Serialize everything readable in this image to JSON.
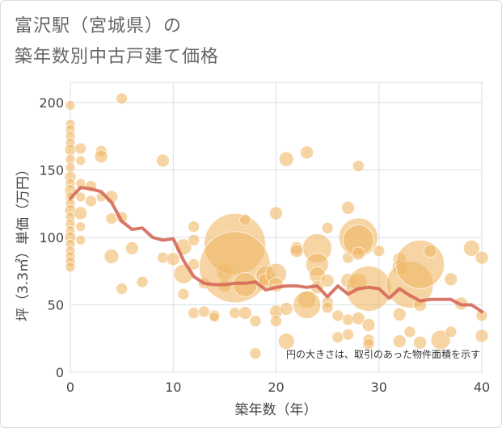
{
  "title": {
    "line1": "富沢駅（宮城県）の",
    "line2": "築年数別中古戸建て価格"
  },
  "chart_data": {
    "type": "scatter",
    "xlabel": "築年数（年）",
    "ylabel": "坪（3.3㎡）単価（万円）",
    "xlim": [
      0,
      40
    ],
    "ylim": [
      0,
      215
    ],
    "xticks": [
      0,
      10,
      20,
      30,
      40
    ],
    "yticks": [
      0,
      50,
      100,
      150,
      200
    ],
    "grid": true,
    "note": "円の大きさは、取引のあった物件面積を示す",
    "colors": {
      "bubble": "#f0b866",
      "line": "#d5695a",
      "grid": "#d8dde6"
    },
    "bubbles": [
      [
        0,
        198,
        6
      ],
      [
        0,
        184,
        6
      ],
      [
        0,
        180,
        6
      ],
      [
        0,
        175,
        6
      ],
      [
        0,
        170,
        6
      ],
      [
        0,
        165,
        7
      ],
      [
        0,
        158,
        6
      ],
      [
        0,
        152,
        6
      ],
      [
        0,
        145,
        7
      ],
      [
        0,
        140,
        6
      ],
      [
        0,
        135,
        7
      ],
      [
        0,
        130,
        6
      ],
      [
        0,
        125,
        6
      ],
      [
        0,
        120,
        7
      ],
      [
        0,
        115,
        6
      ],
      [
        0,
        110,
        6
      ],
      [
        0,
        105,
        6
      ],
      [
        0,
        100,
        7
      ],
      [
        0,
        95,
        6
      ],
      [
        0,
        90,
        6
      ],
      [
        0,
        86,
        6
      ],
      [
        0,
        82,
        6
      ],
      [
        0,
        78,
        6
      ],
      [
        1,
        166,
        7
      ],
      [
        1,
        157,
        6
      ],
      [
        1,
        140,
        6
      ],
      [
        1,
        130,
        6
      ],
      [
        1,
        118,
        8
      ],
      [
        1,
        108,
        6
      ],
      [
        1,
        98,
        6
      ],
      [
        2,
        138,
        7
      ],
      [
        2,
        127,
        7
      ],
      [
        3,
        164,
        7
      ],
      [
        3,
        160,
        8
      ],
      [
        3,
        130,
        6
      ],
      [
        4,
        130,
        8
      ],
      [
        4,
        114,
        7
      ],
      [
        4,
        86,
        9
      ],
      [
        5,
        203,
        7
      ],
      [
        5,
        115,
        7
      ],
      [
        5,
        62,
        7
      ],
      [
        6,
        92,
        8
      ],
      [
        7,
        67,
        7
      ],
      [
        9,
        157,
        8
      ],
      [
        9,
        85,
        7
      ],
      [
        10,
        84,
        8
      ],
      [
        11,
        93,
        10
      ],
      [
        11,
        73,
        12
      ],
      [
        11,
        58,
        7
      ],
      [
        12,
        108,
        7
      ],
      [
        12,
        98,
        7
      ],
      [
        12,
        80,
        7
      ],
      [
        12,
        44,
        7
      ],
      [
        13,
        66,
        7
      ],
      [
        13,
        45,
        7
      ],
      [
        14,
        42,
        7
      ],
      [
        14,
        41,
        6
      ],
      [
        15,
        74,
        10
      ],
      [
        15,
        64,
        8
      ],
      [
        16,
        95,
        38
      ],
      [
        16,
        78,
        44
      ],
      [
        16,
        44,
        7
      ],
      [
        17,
        113,
        7
      ],
      [
        17,
        65,
        15
      ],
      [
        17,
        44,
        8
      ],
      [
        18,
        38,
        7
      ],
      [
        18,
        14,
        7
      ],
      [
        19,
        72,
        12
      ],
      [
        19,
        68,
        9
      ],
      [
        20,
        118,
        8
      ],
      [
        20,
        73,
        13
      ],
      [
        20,
        65,
        9
      ],
      [
        20,
        45,
        8
      ],
      [
        20,
        38,
        7
      ],
      [
        21,
        158,
        9
      ],
      [
        21,
        47,
        8
      ],
      [
        21,
        23,
        10
      ],
      [
        22,
        92,
        8
      ],
      [
        22,
        90,
        8
      ],
      [
        23,
        163,
        8
      ],
      [
        23,
        54,
        11
      ],
      [
        23,
        50,
        17
      ],
      [
        24,
        92,
        18
      ],
      [
        24,
        80,
        14
      ],
      [
        24,
        72,
        10
      ],
      [
        24,
        63,
        8
      ],
      [
        25,
        107,
        7
      ],
      [
        25,
        68,
        8
      ],
      [
        25,
        52,
        7
      ],
      [
        25,
        48,
        7
      ],
      [
        26,
        42,
        7
      ],
      [
        26,
        26,
        7
      ],
      [
        27,
        122,
        8
      ],
      [
        27,
        85,
        7
      ],
      [
        27,
        68,
        9
      ],
      [
        27,
        39,
        7
      ],
      [
        27,
        28,
        7
      ],
      [
        28,
        153,
        7
      ],
      [
        28,
        100,
        24
      ],
      [
        28,
        98,
        19
      ],
      [
        28,
        88,
        8
      ],
      [
        28,
        67,
        11
      ],
      [
        28,
        40,
        8
      ],
      [
        29,
        62,
        28
      ],
      [
        29,
        35,
        8
      ],
      [
        29,
        24,
        7
      ],
      [
        29,
        21,
        7
      ],
      [
        30,
        90,
        7
      ],
      [
        32,
        84,
        8
      ],
      [
        32,
        78,
        9
      ],
      [
        32,
        43,
        8
      ],
      [
        32,
        23,
        8
      ],
      [
        33,
        65,
        29
      ],
      [
        33,
        30,
        7
      ],
      [
        34,
        80,
        30
      ],
      [
        34,
        50,
        8
      ],
      [
        34,
        22,
        8
      ],
      [
        35,
        90,
        8
      ],
      [
        36,
        24,
        12
      ],
      [
        37,
        69,
        8
      ],
      [
        37,
        30,
        7
      ],
      [
        38,
        51,
        8
      ],
      [
        39,
        92,
        10
      ],
      [
        40,
        85,
        8
      ],
      [
        40,
        42,
        7
      ],
      [
        40,
        27,
        8
      ]
    ],
    "line": {
      "x": [
        0,
        1,
        2,
        3,
        4,
        5,
        6,
        7,
        8,
        9,
        10,
        11,
        12,
        13,
        14,
        15,
        16,
        17,
        18,
        19,
        20,
        21,
        22,
        23,
        24,
        25,
        26,
        27,
        28,
        29,
        30,
        31,
        32,
        33,
        34,
        35,
        36,
        37,
        38,
        39,
        40
      ],
      "y": [
        129,
        137,
        136,
        134,
        126,
        112,
        106,
        107,
        100,
        98,
        99,
        83,
        71,
        66,
        65,
        65,
        66,
        66,
        67,
        61,
        63,
        64,
        64,
        63,
        64,
        56,
        64,
        58,
        62,
        63,
        62,
        55,
        62,
        57,
        53,
        54,
        54,
        54,
        50,
        50,
        45
      ]
    }
  }
}
